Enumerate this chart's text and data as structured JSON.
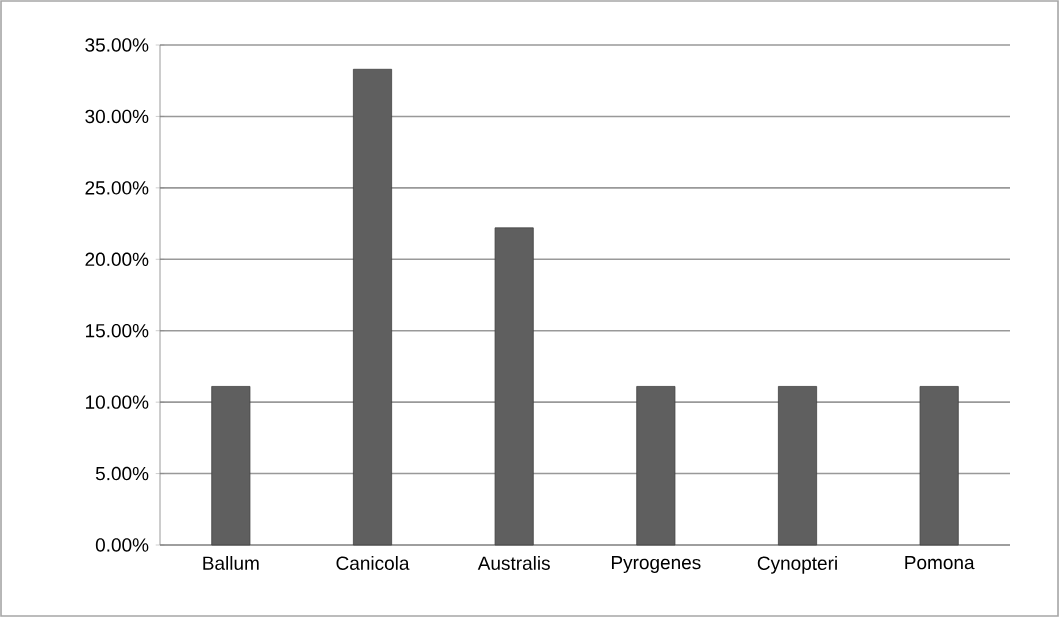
{
  "chart_data": {
    "type": "bar",
    "categories": [
      "Ballum",
      "Canicola",
      "Australis",
      "Pyrogenes",
      "Cynopteri",
      "Pomona"
    ],
    "values": [
      11.1,
      33.3,
      22.2,
      11.1,
      11.1,
      11.1
    ],
    "color": "#5f5f5f",
    "ylim": [
      0,
      35
    ],
    "yticks": [
      {
        "value": 0,
        "label": "0.00%"
      },
      {
        "value": 5,
        "label": "5.00%"
      },
      {
        "value": 10,
        "label": "10.00%"
      },
      {
        "value": 15,
        "label": "15.00%"
      },
      {
        "value": 20,
        "label": "20.00%"
      },
      {
        "value": 25,
        "label": "25.00%"
      },
      {
        "value": 30,
        "label": "30.00%"
      },
      {
        "value": 35,
        "label": "35.00%"
      }
    ],
    "grid": "y"
  }
}
